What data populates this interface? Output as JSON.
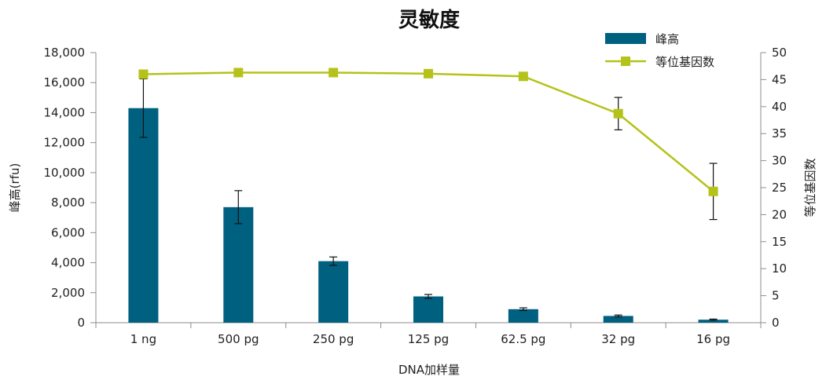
{
  "chart_data": {
    "type": "bar",
    "title": "灵敏度",
    "xlabel": "DNA加样量",
    "ylabel_left": "峰高(rfu)",
    "ylabel_right": "等位基因数",
    "categories": [
      "1 ng",
      "500 pg",
      "250 pg",
      "125 pg",
      "62.5 pg",
      "32 pg",
      "16 pg"
    ],
    "y_left_ticks": [
      "0",
      "2,000",
      "4,000",
      "6,000",
      "8,000",
      "10,000",
      "12,000",
      "14,000",
      "16,000",
      "18,000"
    ],
    "y_right_ticks": [
      "0",
      "5",
      "10",
      "15",
      "20",
      "25",
      "30",
      "35",
      "40",
      "45",
      "50"
    ],
    "ylim_left": [
      0,
      18000
    ],
    "ylim_right": [
      0,
      50
    ],
    "legend_position": "top-right",
    "grid": false,
    "series": [
      {
        "name": "峰高",
        "type": "bar",
        "axis": "left",
        "color": "#006080",
        "values": [
          14300,
          7700,
          4100,
          1750,
          900,
          450,
          200
        ],
        "error": [
          1950,
          1100,
          280,
          130,
          90,
          60,
          40
        ]
      },
      {
        "name": "等位基因数",
        "type": "line",
        "axis": "right",
        "color": "#b5c21a",
        "values": [
          46,
          46.3,
          46.3,
          46.1,
          45.6,
          38.7,
          24.3
        ],
        "error": [
          0,
          0,
          0,
          0,
          0,
          3,
          5.2
        ]
      }
    ]
  }
}
